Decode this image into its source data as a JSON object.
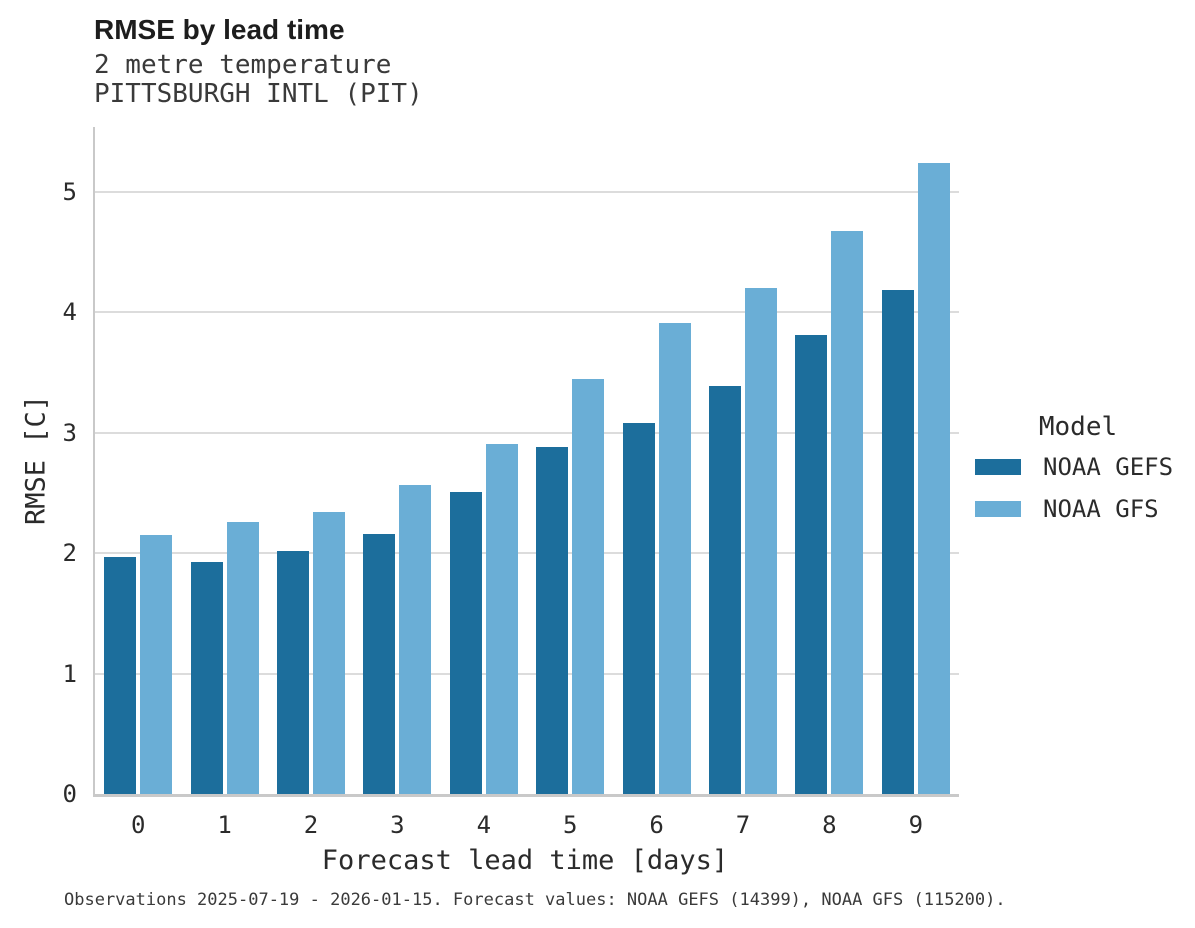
{
  "chart_data": {
    "type": "bar",
    "title": "RMSE by lead time",
    "subtitle": [
      "2 metre temperature",
      "PITTSBURGH INTL (PIT)"
    ],
    "categories": [
      "0",
      "1",
      "2",
      "3",
      "4",
      "5",
      "6",
      "7",
      "8",
      "9"
    ],
    "series": [
      {
        "name": "NOAA GEFS",
        "color": "#1c6e9c",
        "values": [
          1.97,
          1.93,
          2.02,
          2.16,
          2.51,
          2.88,
          3.08,
          3.39,
          3.81,
          4.19
        ]
      },
      {
        "name": "NOAA GFS",
        "color": "#6aaed6",
        "values": [
          2.15,
          2.26,
          2.34,
          2.57,
          2.91,
          3.45,
          3.91,
          4.2,
          4.68,
          5.24
        ]
      }
    ],
    "xlabel": "Forecast lead time [days]",
    "ylabel": "RMSE [C]",
    "ylim": [
      0,
      5.54
    ],
    "yticks": [
      0,
      1,
      2,
      3,
      4,
      5
    ],
    "grid": true,
    "legend_title": "Model",
    "legend_position": "right",
    "caption": "Observations 2025-07-19 - 2026-01-15. Forecast values: NOAA GEFS (14399), NOAA GFS (115200)."
  }
}
